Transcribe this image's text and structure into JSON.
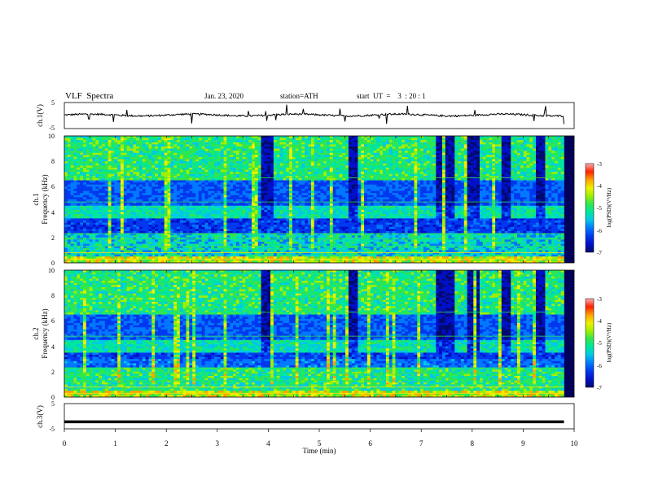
{
  "header": {
    "title": "VLF  Spectra",
    "date": "Jan. 23, 2020",
    "station": "station=ATH",
    "start_ut": "start  UT  =    3  : 20 : 1"
  },
  "colors": {
    "colormap": [
      "#000000",
      "#000a6e",
      "#0010c8",
      "#0038f0",
      "#0078ff",
      "#00c8e8",
      "#00e6a0",
      "#30e650",
      "#a0f000",
      "#f0f000",
      "#ffa000",
      "#ff2000",
      "#ffb0b0",
      "#ffffff"
    ],
    "trace": "#000000"
  },
  "chart_data": [
    {
      "type": "line",
      "ylabel": "ch.1(V)",
      "ylim": [
        -5,
        5
      ],
      "yticks": [
        "5",
        "-5"
      ],
      "xlim": [
        0,
        10
      ],
      "baseline_v": 0.2
    },
    {
      "type": "heatmap",
      "ylabel": "ch.1",
      "ylabel2": "Frequency  (kHz)",
      "ylim": [
        0,
        10
      ],
      "yticks": [
        "10",
        "8",
        "6",
        "4",
        "2",
        "0"
      ],
      "xlim": [
        0,
        10
      ],
      "data_end_min": 9.8,
      "colorbar": {
        "label": "log(PSD)(V²/Hz)",
        "range": [
          -7,
          -3
        ],
        "ticks": [
          "-3",
          "-4",
          "-5",
          "-6",
          "-7"
        ]
      }
    },
    {
      "type": "heatmap",
      "ylabel": "ch.2",
      "ylabel2": "Frequency  (kHz)",
      "ylim": [
        0,
        10
      ],
      "yticks": [
        "10",
        "8",
        "6",
        "4",
        "2",
        "0"
      ],
      "xlim": [
        0,
        10
      ],
      "data_end_min": 9.8,
      "colorbar": {
        "label": "log(PSD)(V²/Hz)",
        "range": [
          -7,
          -3
        ],
        "ticks": [
          "-3",
          "-4",
          "-5",
          "-6",
          "-7"
        ]
      }
    },
    {
      "type": "line",
      "ylabel": "ch.3(V)",
      "ylim": [
        -5,
        5
      ],
      "yticks": [
        "5",
        "-5"
      ],
      "xlim": [
        0,
        10
      ],
      "baseline_v": -2.2,
      "xlabel": "Time  (min)",
      "xticks": [
        "0",
        "1",
        "2",
        "3",
        "4",
        "5",
        "6",
        "7",
        "8",
        "9",
        "10"
      ]
    }
  ]
}
